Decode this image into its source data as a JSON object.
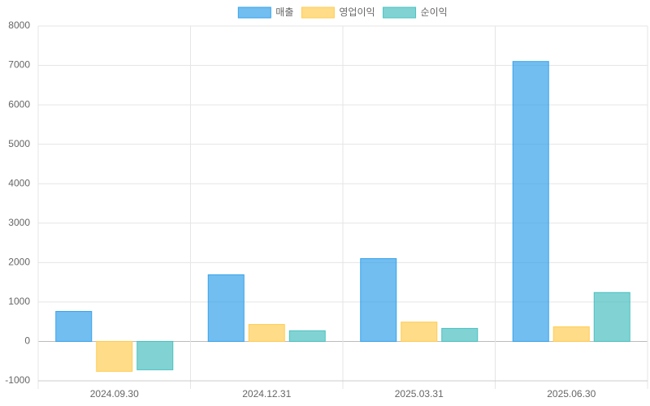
{
  "chart_data": {
    "type": "bar",
    "categories": [
      "2024.09.30",
      "2024.12.31",
      "2025.03.31",
      "2025.06.30"
    ],
    "series": [
      {
        "name": "매출",
        "color": "#36a2eb",
        "values": [
          760,
          1690,
          2100,
          7100
        ]
      },
      {
        "name": "영업이익",
        "color": "#ffcd56",
        "values": [
          -760,
          430,
          490,
          370
        ]
      },
      {
        "name": "순이익",
        "color": "#4bc0c0",
        "values": [
          -720,
          270,
          330,
          1240
        ]
      }
    ],
    "ylim": [
      -1000,
      8000
    ],
    "yticks": [
      -1000,
      0,
      1000,
      2000,
      3000,
      4000,
      5000,
      6000,
      7000,
      8000
    ],
    "grid": true,
    "legend": "top"
  }
}
